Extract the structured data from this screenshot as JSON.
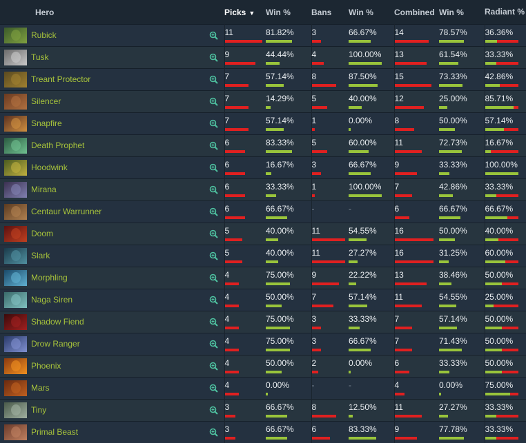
{
  "headers": {
    "hero": "Hero",
    "picks": "Picks",
    "picks_arrow": "▼",
    "pick_win": "Win %",
    "bans": "Bans",
    "ban_win": "Win %",
    "combined": "Combined",
    "combined_win": "Win %",
    "radiant": "Radiant %"
  },
  "colors": {
    "bar_red": "#e02020",
    "bar_green": "#99c43b",
    "hero_name": "#a6c23b"
  },
  "rows": [
    {
      "hero": "Rubick",
      "picks": "11",
      "pick_win": "81.82%",
      "bans": "3",
      "ban_win": "66.67%",
      "combined": "14",
      "combined_win": "78.57%",
      "radiant": "36.36%",
      "icon": "rubick-portrait"
    },
    {
      "hero": "Tusk",
      "picks": "9",
      "pick_win": "44.44%",
      "bans": "4",
      "ban_win": "100.00%",
      "combined": "13",
      "combined_win": "61.54%",
      "radiant": "33.33%",
      "icon": "tusk-portrait"
    },
    {
      "hero": "Treant Protector",
      "picks": "7",
      "pick_win": "57.14%",
      "bans": "8",
      "ban_win": "87.50%",
      "combined": "15",
      "combined_win": "73.33%",
      "radiant": "42.86%",
      "icon": "treant-portrait"
    },
    {
      "hero": "Silencer",
      "picks": "7",
      "pick_win": "14.29%",
      "bans": "5",
      "ban_win": "40.00%",
      "combined": "12",
      "combined_win": "25.00%",
      "radiant": "85.71%",
      "icon": "silencer-portrait"
    },
    {
      "hero": "Snapfire",
      "picks": "7",
      "pick_win": "57.14%",
      "bans": "1",
      "ban_win": "0.00%",
      "combined": "8",
      "combined_win": "50.00%",
      "radiant": "57.14%",
      "icon": "snapfire-portrait"
    },
    {
      "hero": "Death Prophet",
      "picks": "6",
      "pick_win": "83.33%",
      "bans": "5",
      "ban_win": "60.00%",
      "combined": "11",
      "combined_win": "72.73%",
      "radiant": "16.67%",
      "icon": "death-prophet-portrait"
    },
    {
      "hero": "Hoodwink",
      "picks": "6",
      "pick_win": "16.67%",
      "bans": "3",
      "ban_win": "66.67%",
      "combined": "9",
      "combined_win": "33.33%",
      "radiant": "100.00%",
      "icon": "hoodwink-portrait"
    },
    {
      "hero": "Mirana",
      "picks": "6",
      "pick_win": "33.33%",
      "bans": "1",
      "ban_win": "100.00%",
      "combined": "7",
      "combined_win": "42.86%",
      "radiant": "33.33%",
      "icon": "mirana-portrait"
    },
    {
      "hero": "Centaur Warrunner",
      "picks": "6",
      "pick_win": "66.67%",
      "bans": "-",
      "ban_win": "-",
      "combined": "6",
      "combined_win": "66.67%",
      "radiant": "66.67%",
      "icon": "centaur-portrait"
    },
    {
      "hero": "Doom",
      "picks": "5",
      "pick_win": "40.00%",
      "bans": "11",
      "ban_win": "54.55%",
      "combined": "16",
      "combined_win": "50.00%",
      "radiant": "40.00%",
      "icon": "doom-portrait"
    },
    {
      "hero": "Slark",
      "picks": "5",
      "pick_win": "40.00%",
      "bans": "11",
      "ban_win": "27.27%",
      "combined": "16",
      "combined_win": "31.25%",
      "radiant": "60.00%",
      "icon": "slark-portrait"
    },
    {
      "hero": "Morphling",
      "picks": "4",
      "pick_win": "75.00%",
      "bans": "9",
      "ban_win": "22.22%",
      "combined": "13",
      "combined_win": "38.46%",
      "radiant": "50.00%",
      "icon": "morphling-portrait"
    },
    {
      "hero": "Naga Siren",
      "picks": "4",
      "pick_win": "50.00%",
      "bans": "7",
      "ban_win": "57.14%",
      "combined": "11",
      "combined_win": "54.55%",
      "radiant": "25.00%",
      "icon": "naga-siren-portrait"
    },
    {
      "hero": "Shadow Fiend",
      "picks": "4",
      "pick_win": "75.00%",
      "bans": "3",
      "ban_win": "33.33%",
      "combined": "7",
      "combined_win": "57.14%",
      "radiant": "50.00%",
      "icon": "shadow-fiend-portrait"
    },
    {
      "hero": "Drow Ranger",
      "picks": "4",
      "pick_win": "75.00%",
      "bans": "3",
      "ban_win": "66.67%",
      "combined": "7",
      "combined_win": "71.43%",
      "radiant": "50.00%",
      "icon": "drow-ranger-portrait"
    },
    {
      "hero": "Phoenix",
      "picks": "4",
      "pick_win": "50.00%",
      "bans": "2",
      "ban_win": "0.00%",
      "combined": "6",
      "combined_win": "33.33%",
      "radiant": "50.00%",
      "icon": "phoenix-portrait"
    },
    {
      "hero": "Mars",
      "picks": "4",
      "pick_win": "0.00%",
      "bans": "-",
      "ban_win": "-",
      "combined": "4",
      "combined_win": "0.00%",
      "radiant": "75.00%",
      "icon": "mars-portrait"
    },
    {
      "hero": "Tiny",
      "picks": "3",
      "pick_win": "66.67%",
      "bans": "8",
      "ban_win": "12.50%",
      "combined": "11",
      "combined_win": "27.27%",
      "radiant": "33.33%",
      "icon": "tiny-portrait"
    },
    {
      "hero": "Primal Beast",
      "picks": "3",
      "pick_win": "66.67%",
      "bans": "6",
      "ban_win": "83.33%",
      "combined": "9",
      "combined_win": "77.78%",
      "radiant": "33.33%",
      "icon": "primal-beast-portrait"
    }
  ]
}
